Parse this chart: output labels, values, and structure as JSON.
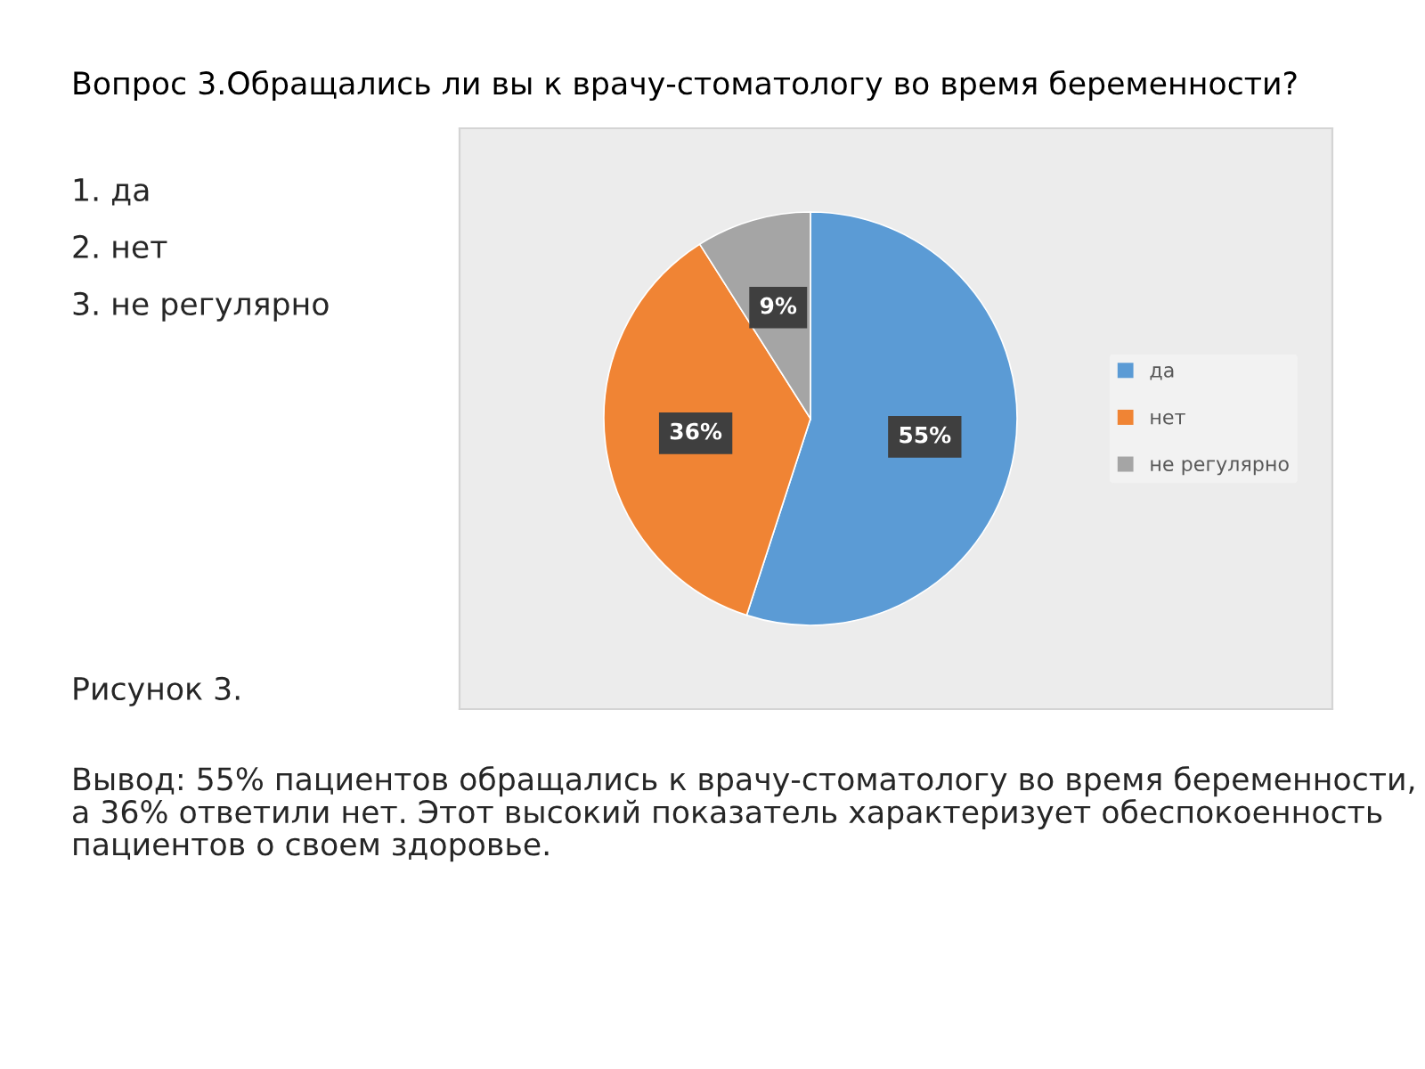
{
  "chart_data": {
    "type": "pie",
    "title": "Вопрос 3.Обращались ли вы к врачу-стоматологу во время беременности?",
    "categories": [
      "да",
      "нет",
      "не регулярно"
    ],
    "values": [
      55,
      36,
      9
    ],
    "value_labels": [
      "55%",
      "36%",
      "9%"
    ],
    "colors": [
      "#5b9bd5",
      "#f08434",
      "#a5a5a5"
    ],
    "legend": "right",
    "annotations": [
      "1. да",
      "2. нет",
      "3. не регулярно",
      "Рисунок 3.",
      "Вывод: 55% пациентов обращались к врачу-стоматологу во время беременности, а 36% ответили нет. Этот высокий показатель характеризует обеспокоенность пациентов о своем здоровье."
    ]
  }
}
